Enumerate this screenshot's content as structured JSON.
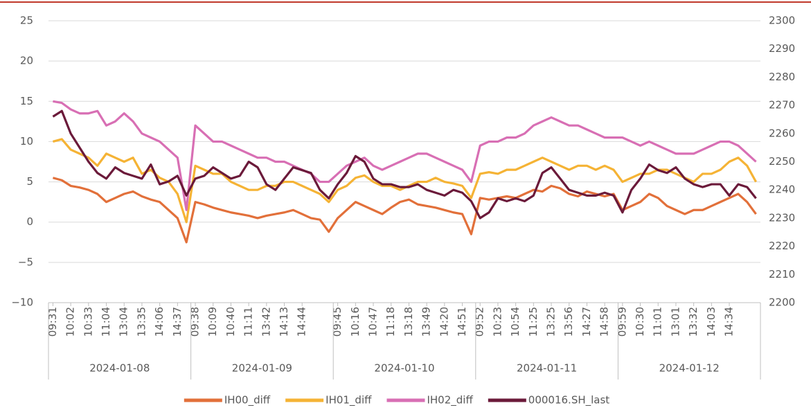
{
  "chart_data": {
    "type": "line",
    "categories": [
      "09:31",
      null,
      "10:02",
      null,
      "10:33",
      null,
      "11:04",
      null,
      "13:04",
      null,
      "13:35",
      null,
      "14:06",
      null,
      "14:37",
      null,
      "09:38",
      null,
      "10:09",
      null,
      "10:40",
      null,
      "11:11",
      null,
      "13:42",
      null,
      "14:13",
      null,
      "14:44",
      null,
      null,
      null,
      "09:45",
      null,
      "10:16",
      null,
      "10:47",
      null,
      "11:18",
      null,
      "13:18",
      null,
      "13:49",
      null,
      "14:20",
      null,
      "14:51",
      null,
      "09:52",
      null,
      "10:23",
      null,
      "10:54",
      null,
      "11:25",
      null,
      "13:25",
      null,
      "13:56",
      null,
      "14:27",
      null,
      "14:58",
      null,
      "09:59",
      null,
      "10:30",
      null,
      "11:01",
      null,
      "13:01",
      null,
      "13:32",
      null,
      "14:03",
      null,
      "14:34",
      null,
      null,
      null
    ],
    "category_groups": [
      "2024-01-08",
      "2024-01-09",
      "2024-01-10",
      "2024-01-11",
      "2024-01-12"
    ],
    "ylim": [
      -10,
      25
    ],
    "yticks": [
      {
        "value": -10,
        "label": "−10"
      },
      {
        "value": -5,
        "label": "−5"
      },
      0,
      5,
      10,
      15,
      20,
      25
    ],
    "y2lim": [
      2200,
      2300
    ],
    "y2ticks": [
      2200,
      2210,
      2220,
      2230,
      2240,
      2250,
      2260,
      2270,
      2280,
      2290,
      2300
    ],
    "grid": true,
    "legend": "bottom",
    "series": [
      {
        "name": "IH00_diff",
        "color": "#e2703a",
        "values": [
          5.5,
          5.2,
          4.5,
          4.3,
          4.0,
          3.5,
          2.5,
          3.0,
          3.5,
          3.8,
          3.2,
          2.8,
          2.5,
          1.5,
          0.5,
          -2.5,
          2.5,
          2.2,
          1.8,
          1.5,
          1.2,
          1.0,
          0.8,
          0.5,
          0.8,
          1.0,
          1.2,
          1.5,
          1.0,
          0.5,
          0.3,
          -1.2,
          0.5,
          1.5,
          2.5,
          2.0,
          1.5,
          1.0,
          1.8,
          2.5,
          2.8,
          2.2,
          2.0,
          1.8,
          1.5,
          1.2,
          1.0,
          -1.5,
          3.0,
          2.8,
          3.0,
          3.2,
          3.0,
          3.5,
          4.0,
          3.8,
          4.5,
          4.2,
          3.5,
          3.2,
          3.8,
          3.5,
          3.2,
          3.5,
          1.5,
          2.0,
          2.5,
          3.5,
          3.0,
          2.0,
          1.5,
          1.0,
          1.5,
          1.5,
          2.0,
          2.5,
          3.0,
          3.5,
          2.5,
          1.0
        ]
      },
      {
        "name": "IH01_diff",
        "color": "#f5b335",
        "values": [
          10,
          10.3,
          9,
          8.5,
          8,
          7,
          8.5,
          8,
          7.5,
          8,
          6,
          6.5,
          5.5,
          5,
          3.5,
          0,
          7,
          6.5,
          6,
          6,
          5,
          4.5,
          4,
          4,
          4.5,
          4.5,
          5,
          5,
          4.5,
          4,
          3.5,
          2.5,
          4,
          4.5,
          5.5,
          5.8,
          5,
          4.5,
          4.5,
          4,
          4.5,
          5,
          5,
          5.5,
          5,
          4.8,
          4.5,
          3,
          6,
          6.2,
          6,
          6.5,
          6.5,
          7,
          7.5,
          8,
          7.5,
          7,
          6.5,
          7,
          7,
          6.5,
          7,
          6.5,
          5,
          5.5,
          6,
          6,
          6.5,
          6.5,
          6,
          5.5,
          5,
          6,
          6,
          6.5,
          7.5,
          8,
          7,
          5
        ]
      },
      {
        "name": "IH02_diff",
        "color": "#d86fb4",
        "values": [
          15,
          14.8,
          14,
          13.5,
          13.5,
          13.8,
          12,
          12.5,
          13.5,
          12.5,
          11,
          10.5,
          10,
          9,
          8,
          1.5,
          12,
          11,
          10,
          10,
          9.5,
          9,
          8.5,
          8,
          8,
          7.5,
          7.5,
          7,
          6.5,
          6,
          5,
          5,
          6,
          7,
          7.5,
          8,
          7,
          6.5,
          7,
          7.5,
          8,
          8.5,
          8.5,
          8,
          7.5,
          7,
          6.5,
          5,
          9.5,
          10,
          10,
          10.5,
          10.5,
          11,
          12,
          12.5,
          13,
          12.5,
          12,
          12,
          11.5,
          11,
          10.5,
          10.5,
          10.5,
          10,
          9.5,
          10,
          9.5,
          9,
          8.5,
          8.5,
          8.5,
          9,
          9.5,
          10,
          10,
          9.5,
          8.5,
          7.5
        ]
      },
      {
        "name": "000016.SH_last",
        "color": "#6b1a3a",
        "axis": "y2",
        "values": [
          2266,
          2268,
          2260,
          2255,
          2250,
          2246,
          2244,
          2248,
          2246,
          2245,
          2244,
          2249,
          2242,
          2243,
          2245,
          2238,
          2244,
          2245,
          2248,
          2246,
          2244,
          2245,
          2250,
          2248,
          2242,
          2240,
          2244,
          2248,
          2247,
          2246,
          2240,
          2237,
          2242,
          2246,
          2252,
          2250,
          2244,
          2242,
          2242,
          2241,
          2241,
          2242,
          2240,
          2239,
          2238,
          2240,
          2239,
          2236,
          2230,
          2232,
          2237,
          2236,
          2237,
          2236,
          2238,
          2246,
          2248,
          2244,
          2240,
          2239,
          2238,
          2238,
          2239,
          2238,
          2232,
          2240,
          2244,
          2249,
          2247,
          2246,
          2248,
          2244,
          2242,
          2241,
          2242,
          2242,
          2238,
          2242,
          2241,
          2237
        ]
      }
    ]
  }
}
